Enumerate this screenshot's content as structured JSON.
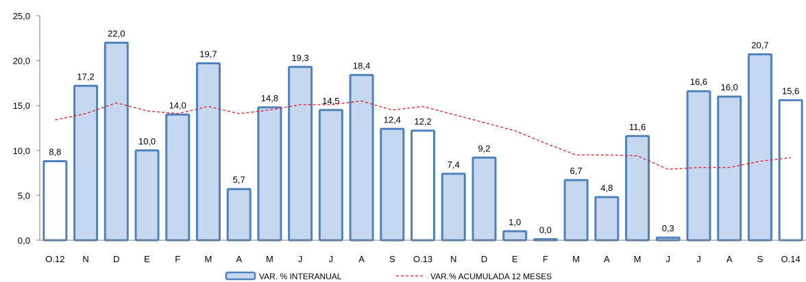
{
  "chart_data": {
    "type": "bar",
    "categories": [
      "O.12",
      "N",
      "D",
      "E",
      "F",
      "M",
      "A",
      "M",
      "J",
      "J",
      "A",
      "S",
      "O.13",
      "N",
      "D",
      "E",
      "F",
      "M",
      "A",
      "M",
      "J",
      "J",
      "A",
      "S",
      "O.14"
    ],
    "series": [
      {
        "name": "VAR. % INTERANUAL",
        "type": "bar",
        "values": [
          8.8,
          17.2,
          22.0,
          10.0,
          14.0,
          19.7,
          5.7,
          14.8,
          19.3,
          14.5,
          18.4,
          12.4,
          12.2,
          7.4,
          9.2,
          1.0,
          0.0,
          6.7,
          4.8,
          11.6,
          0.3,
          16.6,
          16.0,
          20.7,
          15.6
        ],
        "labels": [
          "8,8",
          "17,2",
          "22,0",
          "10,0",
          "14,0",
          "19,7",
          "5,7",
          "14,8",
          "19,3",
          "14,5",
          "18,4",
          "12,4",
          "12,2",
          "7,4",
          "9,2",
          "1,0",
          "0,0",
          "6,7",
          "4,8",
          "11,6",
          "0,3",
          "16,6",
          "16,0",
          "20,7",
          "15,6"
        ],
        "highlighted_white": [
          0,
          12,
          24
        ]
      },
      {
        "name": "VAR.% ACUMULADA 12 MESES",
        "type": "line",
        "style": "dashed",
        "values": [
          13.4,
          14.1,
          15.3,
          14.4,
          14.1,
          14.9,
          14.1,
          14.5,
          15.1,
          15.1,
          15.5,
          14.5,
          14.9,
          14.0,
          13.1,
          12.2,
          10.8,
          9.5,
          9.5,
          9.4,
          7.9,
          8.1,
          8.1,
          8.8,
          9.2
        ]
      }
    ],
    "y_ticks": [
      "0,0",
      "5,0",
      "10,0",
      "15,0",
      "20,0",
      "25,0"
    ],
    "ylim": [
      0,
      25
    ],
    "grid": false,
    "legend_placement": "bottom",
    "colors": {
      "bar_fill": "#c6d8f0",
      "bar_stroke": "#4f81bd",
      "white_bar_fill": "#ffffff",
      "line": "#e8141e",
      "axis": "#7f7f7f"
    }
  }
}
